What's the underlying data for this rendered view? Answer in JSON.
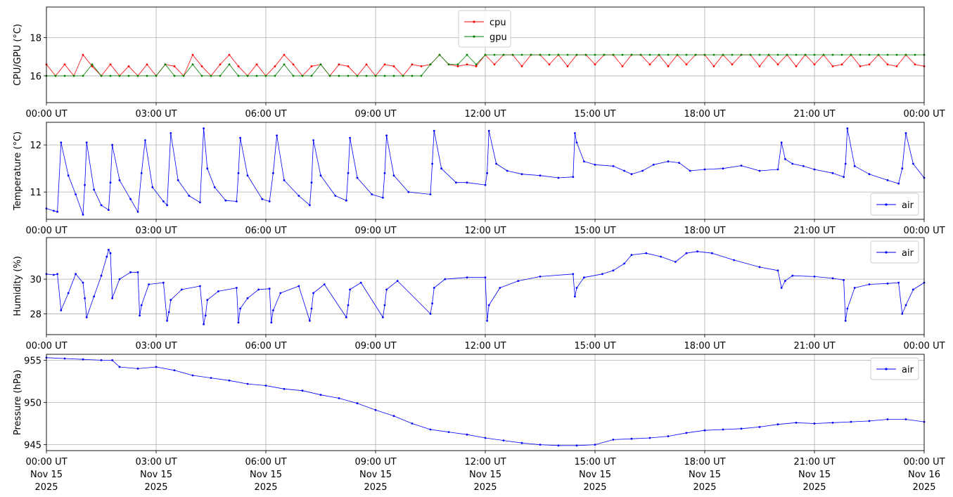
{
  "figure": {
    "x_tick_labels": [
      "00:00 UT",
      "03:00 UT",
      "06:00 UT",
      "09:00 UT",
      "12:00 UT",
      "15:00 UT",
      "18:00 UT",
      "21:00 UT",
      "00:00 UT"
    ],
    "x_date_line1": [
      "Nov 15",
      "Nov 15",
      "Nov 15",
      "Nov 15",
      "Nov 15",
      "Nov 15",
      "Nov 15",
      "Nov 15",
      "Nov 16"
    ],
    "x_date_line2": [
      "2025",
      "2025",
      "2025",
      "2025",
      "2025",
      "2025",
      "2025",
      "2025",
      "2025"
    ]
  },
  "chart_data": [
    {
      "type": "line",
      "ylabel": "CPU/GPU (°C)",
      "xlim": [
        "2025-11-15T00:00",
        "2025-11-16T00:00"
      ],
      "ylim": [
        14.6,
        19.6
      ],
      "yticks": [
        16,
        18
      ],
      "grid": true,
      "legend": "top-center",
      "x_hours": [
        0,
        0.25,
        0.5,
        0.75,
        1,
        1.25,
        1.5,
        1.75,
        2,
        2.25,
        2.5,
        2.75,
        3,
        3.25,
        3.5,
        3.75,
        4,
        4.25,
        4.5,
        4.75,
        5,
        5.25,
        5.5,
        5.75,
        6,
        6.25,
        6.5,
        6.75,
        7,
        7.25,
        7.5,
        7.75,
        8,
        8.25,
        8.5,
        8.75,
        9,
        9.25,
        9.5,
        9.75,
        10,
        10.25,
        10.5,
        10.75,
        11,
        11.25,
        11.5,
        11.75,
        12,
        12.25,
        12.5,
        12.75,
        13,
        13.25,
        13.5,
        13.75,
        14,
        14.25,
        14.5,
        14.75,
        15,
        15.25,
        15.5,
        15.75,
        16,
        16.25,
        16.5,
        16.75,
        17,
        17.25,
        17.5,
        17.75,
        18,
        18.25,
        18.5,
        18.75,
        19,
        19.25,
        19.5,
        19.75,
        20,
        20.25,
        20.5,
        20.75,
        21,
        21.25,
        21.5,
        21.75,
        22,
        22.25,
        22.5,
        22.75,
        23,
        23.25,
        23.5,
        23.75,
        24
      ],
      "series": [
        {
          "name": "cpu",
          "color": "#ff0000",
          "values": [
            16.6,
            16.0,
            16.6,
            16.0,
            17.1,
            16.5,
            16.0,
            16.6,
            16.0,
            16.5,
            16.0,
            16.6,
            16.0,
            16.6,
            16.5,
            16.0,
            17.1,
            16.5,
            16.0,
            16.6,
            17.1,
            16.5,
            16.0,
            16.6,
            16.0,
            16.5,
            17.1,
            16.6,
            16.0,
            16.5,
            16.6,
            16.0,
            16.6,
            16.5,
            16.0,
            16.6,
            16.0,
            16.6,
            16.5,
            16.0,
            16.6,
            16.5,
            16.6,
            17.1,
            16.6,
            16.5,
            16.6,
            16.5,
            17.1,
            16.6,
            17.1,
            17.1,
            16.5,
            17.1,
            17.1,
            16.6,
            17.1,
            16.5,
            17.1,
            17.1,
            16.6,
            17.1,
            17.1,
            16.5,
            17.1,
            17.1,
            16.6,
            17.1,
            16.5,
            17.1,
            16.6,
            17.1,
            17.1,
            16.5,
            17.1,
            16.6,
            17.1,
            17.1,
            16.5,
            17.1,
            16.6,
            17.1,
            16.5,
            17.1,
            16.6,
            17.1,
            16.5,
            16.6,
            17.1,
            16.5,
            16.6,
            17.1,
            16.6,
            16.5,
            17.1,
            16.6,
            16.5
          ]
        },
        {
          "name": "gpu",
          "color": "#008000",
          "values": [
            16.0,
            16.0,
            16.0,
            16.0,
            16.0,
            16.6,
            16.0,
            16.0,
            16.0,
            16.0,
            16.0,
            16.0,
            16.0,
            16.6,
            16.0,
            16.0,
            16.6,
            16.0,
            16.0,
            16.0,
            16.6,
            16.0,
            16.0,
            16.0,
            16.0,
            16.0,
            16.6,
            16.0,
            16.0,
            16.0,
            16.6,
            16.0,
            16.0,
            16.0,
            16.0,
            16.0,
            16.0,
            16.0,
            16.0,
            16.0,
            16.0,
            16.0,
            16.6,
            17.1,
            16.6,
            16.6,
            17.1,
            16.6,
            17.1,
            17.1,
            17.1,
            17.1,
            17.1,
            17.1,
            17.1,
            17.1,
            17.1,
            17.1,
            17.1,
            17.1,
            17.1,
            17.1,
            17.1,
            17.1,
            17.1,
            17.1,
            17.1,
            17.1,
            17.1,
            17.1,
            17.1,
            17.1,
            17.1,
            17.1,
            17.1,
            17.1,
            17.1,
            17.1,
            17.1,
            17.1,
            17.1,
            17.1,
            17.1,
            17.1,
            17.1,
            17.1,
            17.1,
            17.1,
            17.1,
            17.1,
            17.1,
            17.1,
            17.1,
            17.1,
            17.1,
            17.1,
            17.1
          ]
        }
      ]
    },
    {
      "type": "line",
      "ylabel": "Temperature (°C)",
      "xlim": [
        "2025-11-15T00:00",
        "2025-11-16T00:00"
      ],
      "ylim": [
        10.42,
        12.48
      ],
      "yticks": [
        11,
        12
      ],
      "grid": true,
      "legend": "lower-right",
      "x_hours": [
        0,
        0.2,
        0.3,
        0.4,
        0.6,
        0.8,
        1.0,
        1.05,
        1.1,
        1.3,
        1.5,
        1.7,
        1.75,
        1.8,
        2.0,
        2.3,
        2.5,
        2.6,
        2.7,
        2.9,
        3.2,
        3.3,
        3.4,
        3.6,
        3.9,
        4.2,
        4.3,
        4.4,
        4.6,
        4.9,
        5.2,
        5.25,
        5.3,
        5.5,
        5.9,
        6.1,
        6.2,
        6.3,
        6.5,
        6.9,
        7.2,
        7.25,
        7.3,
        7.5,
        7.9,
        8.2,
        8.25,
        8.3,
        8.5,
        8.9,
        9.2,
        9.25,
        9.3,
        9.5,
        9.9,
        10.5,
        10.55,
        10.6,
        10.8,
        11.2,
        11.5,
        12.0,
        12.05,
        12.1,
        12.3,
        12.6,
        13.0,
        13.5,
        14.0,
        14.4,
        14.45,
        14.5,
        14.7,
        15.0,
        15.5,
        15.8,
        16.0,
        16.3,
        16.6,
        17.0,
        17.3,
        17.6,
        18.0,
        18.5,
        19.0,
        19.5,
        20.0,
        20.1,
        20.2,
        20.4,
        20.7,
        21.0,
        21.5,
        21.8,
        21.85,
        21.9,
        22.1,
        22.5,
        23.0,
        23.3,
        23.4,
        23.5,
        23.7,
        24.0
      ],
      "series": [
        {
          "name": "air",
          "color": "#0000ff",
          "values": [
            10.65,
            10.6,
            10.58,
            12.05,
            11.35,
            10.95,
            10.52,
            11.15,
            12.05,
            11.05,
            10.72,
            10.62,
            11.2,
            12.0,
            11.25,
            10.85,
            10.58,
            11.4,
            12.1,
            11.1,
            10.8,
            10.72,
            12.25,
            11.25,
            10.92,
            10.78,
            12.35,
            11.5,
            11.1,
            10.82,
            10.8,
            11.4,
            12.15,
            11.35,
            10.85,
            10.8,
            11.4,
            12.2,
            11.25,
            10.92,
            10.72,
            11.2,
            12.1,
            11.35,
            10.92,
            10.82,
            11.4,
            12.15,
            11.3,
            10.95,
            10.88,
            11.4,
            12.2,
            11.35,
            11.0,
            10.95,
            11.6,
            12.3,
            11.5,
            11.2,
            11.2,
            11.15,
            11.4,
            12.3,
            11.6,
            11.45,
            11.38,
            11.35,
            11.3,
            11.32,
            12.25,
            12.05,
            11.65,
            11.58,
            11.55,
            11.45,
            11.38,
            11.45,
            11.58,
            11.65,
            11.62,
            11.45,
            11.48,
            11.5,
            11.56,
            11.45,
            11.48,
            12.05,
            11.7,
            11.6,
            11.55,
            11.48,
            11.4,
            11.32,
            11.6,
            12.35,
            11.55,
            11.38,
            11.25,
            11.18,
            11.5,
            12.25,
            11.6,
            11.3
          ]
        }
      ]
    },
    {
      "type": "line",
      "ylabel": "Humidity (%)",
      "xlim": [
        "2025-11-15T00:00",
        "2025-11-16T00:00"
      ],
      "ylim": [
        26.8,
        32.4
      ],
      "yticks": [
        28,
        30
      ],
      "grid": true,
      "legend": "top-right",
      "x_hours": [
        0,
        0.2,
        0.3,
        0.4,
        0.6,
        0.8,
        1.0,
        1.05,
        1.1,
        1.3,
        1.5,
        1.65,
        1.7,
        1.75,
        1.8,
        2.0,
        2.3,
        2.5,
        2.55,
        2.6,
        2.8,
        3.2,
        3.3,
        3.35,
        3.4,
        3.7,
        4.2,
        4.3,
        4.35,
        4.4,
        4.7,
        5.2,
        5.25,
        5.3,
        5.5,
        5.8,
        6.1,
        6.15,
        6.2,
        6.4,
        6.9,
        7.2,
        7.25,
        7.3,
        7.6,
        8.2,
        8.25,
        8.3,
        8.6,
        9.2,
        9.25,
        9.3,
        9.6,
        10.5,
        10.55,
        10.6,
        10.9,
        11.5,
        12.0,
        12.05,
        12.1,
        12.4,
        12.9,
        13.5,
        14.4,
        14.45,
        14.5,
        14.7,
        15.2,
        15.5,
        15.8,
        16.0,
        16.4,
        16.8,
        17.2,
        17.5,
        17.8,
        18.2,
        18.8,
        19.5,
        20.0,
        20.1,
        20.2,
        20.4,
        21.0,
        21.5,
        21.8,
        21.85,
        21.9,
        22.1,
        22.5,
        23.0,
        23.3,
        23.4,
        23.5,
        23.7,
        24.0
      ],
      "series": [
        {
          "name": "air",
          "color": "#0000ff",
          "values": [
            30.3,
            30.25,
            30.3,
            28.2,
            29.2,
            30.3,
            29.8,
            28.9,
            27.8,
            29.0,
            30.2,
            31.3,
            31.7,
            31.5,
            28.9,
            30.0,
            30.4,
            30.4,
            27.9,
            28.5,
            29.7,
            29.8,
            27.6,
            28.1,
            28.8,
            29.4,
            29.6,
            27.4,
            27.9,
            28.8,
            29.3,
            29.5,
            27.5,
            28.3,
            28.9,
            29.4,
            29.45,
            27.5,
            28.2,
            29.2,
            29.6,
            27.6,
            28.3,
            29.2,
            29.7,
            27.8,
            28.5,
            29.4,
            29.8,
            27.8,
            28.5,
            29.4,
            29.9,
            28.0,
            28.6,
            29.5,
            30.0,
            30.1,
            30.1,
            27.6,
            28.5,
            29.5,
            29.9,
            30.15,
            30.3,
            29.0,
            29.5,
            30.1,
            30.3,
            30.5,
            30.9,
            31.4,
            31.5,
            31.3,
            31.0,
            31.5,
            31.6,
            31.5,
            31.1,
            30.7,
            30.5,
            29.5,
            29.9,
            30.2,
            30.15,
            30.05,
            29.95,
            27.6,
            28.3,
            29.5,
            29.7,
            29.75,
            29.8,
            28.0,
            28.5,
            29.4,
            29.8
          ]
        }
      ]
    },
    {
      "type": "line",
      "ylabel": "Pressure (hPa)",
      "xlim": [
        "2025-11-15T00:00",
        "2025-11-16T00:00"
      ],
      "ylim": [
        944.3,
        955.7
      ],
      "yticks": [
        945,
        950,
        955
      ],
      "grid": true,
      "legend": "top-right",
      "x_hours": [
        0,
        0.5,
        1.0,
        1.5,
        1.8,
        2.0,
        2.5,
        3.0,
        3.5,
        4.0,
        4.5,
        5.0,
        5.5,
        6.0,
        6.5,
        7.0,
        7.5,
        8.0,
        8.5,
        9.0,
        9.5,
        10.0,
        10.5,
        11.0,
        11.5,
        12.0,
        12.5,
        13.0,
        13.5,
        14.0,
        14.5,
        15.0,
        15.5,
        16.0,
        16.5,
        17.0,
        17.5,
        18.0,
        18.5,
        19.0,
        19.5,
        20.0,
        20.5,
        21.0,
        21.5,
        22.0,
        22.5,
        23.0,
        23.5,
        24.0
      ],
      "series": [
        {
          "name": "air",
          "color": "#0000ff",
          "values": [
            955.3,
            955.2,
            955.1,
            955.0,
            955.0,
            954.2,
            954.0,
            954.2,
            953.8,
            953.2,
            952.9,
            952.6,
            952.2,
            952.0,
            951.6,
            951.4,
            950.9,
            950.5,
            949.9,
            949.1,
            948.4,
            947.5,
            946.8,
            946.5,
            946.2,
            945.8,
            945.5,
            945.2,
            945.0,
            944.9,
            944.9,
            945.0,
            945.6,
            945.7,
            945.8,
            946.0,
            946.4,
            946.7,
            946.8,
            946.9,
            947.1,
            947.4,
            947.6,
            947.5,
            947.6,
            947.7,
            947.8,
            948.0,
            948.0,
            947.7
          ]
        }
      ]
    }
  ]
}
